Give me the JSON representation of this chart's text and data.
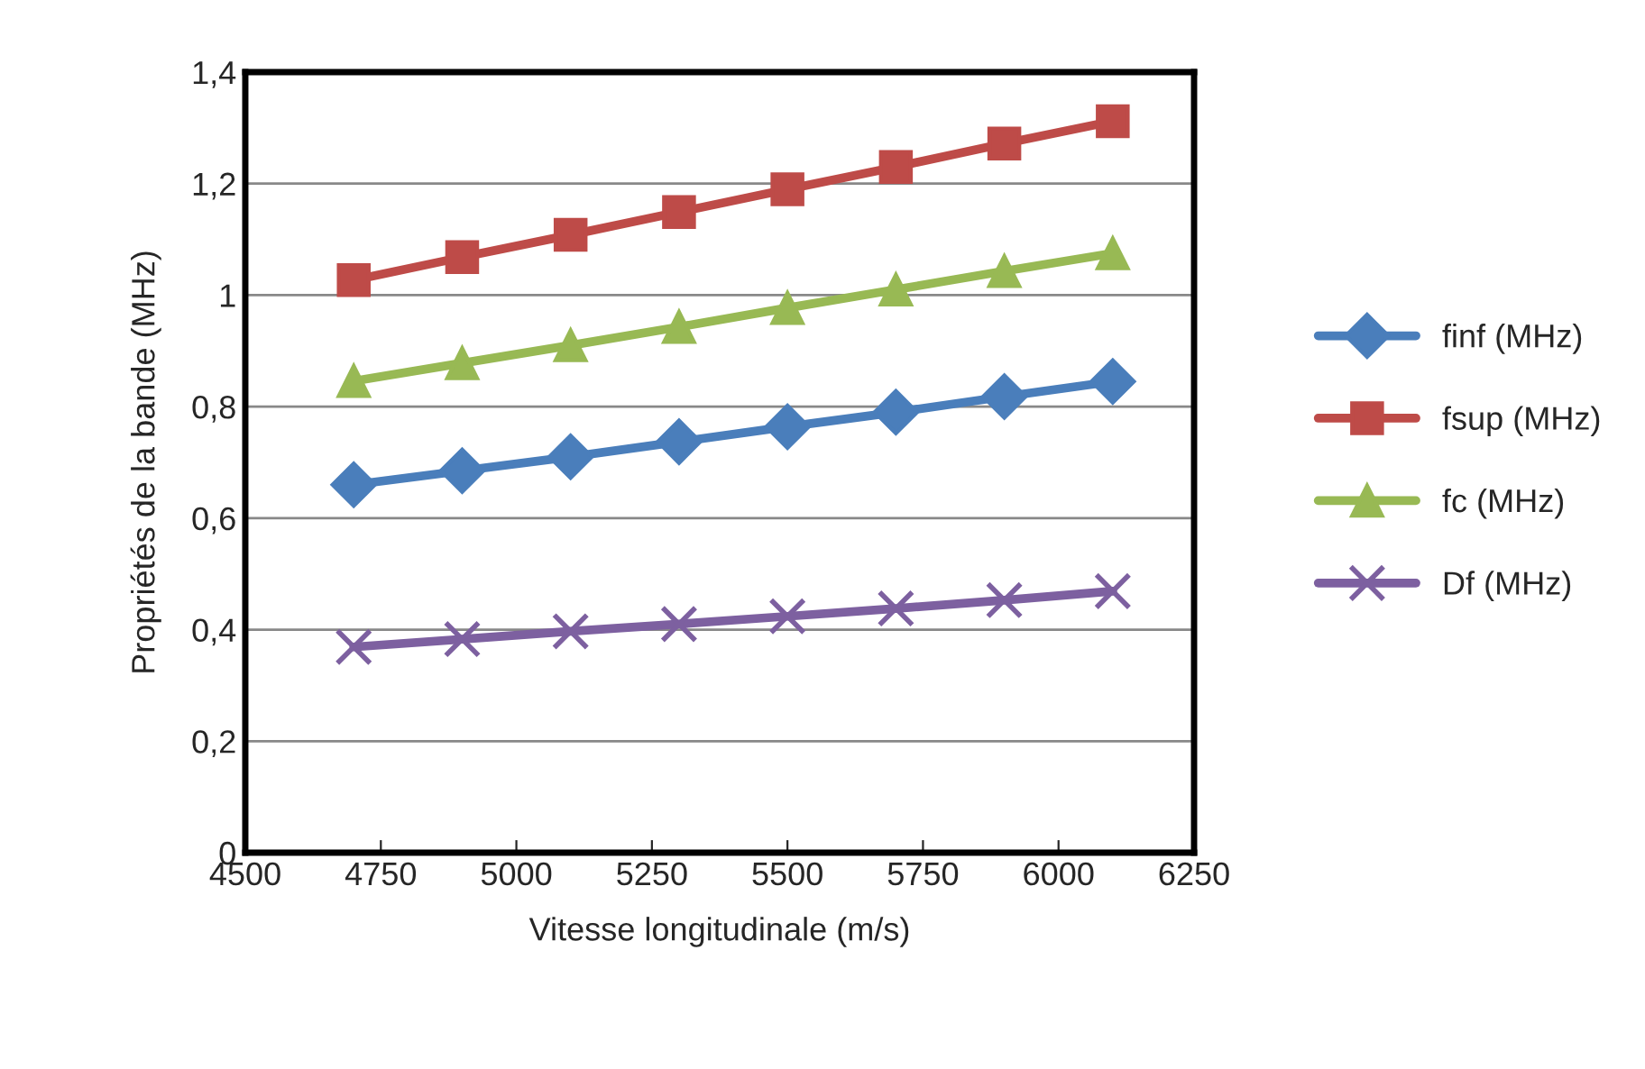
{
  "chart_data": {
    "type": "line",
    "xlabel": "Vitesse longitudinale (m/s)",
    "ylabel": "Propriétés de la bande (MHz)",
    "x": [
      4700,
      4900,
      5100,
      5300,
      5500,
      5700,
      5900,
      6100
    ],
    "series": [
      {
        "name": "finf (MHz)",
        "color": "#4a7ebb",
        "marker": "diamond",
        "values": [
          0.66,
          0.685,
          0.71,
          0.737,
          0.764,
          0.79,
          0.818,
          0.845
        ]
      },
      {
        "name": "fsup (MHz)",
        "color": "#be4b48",
        "marker": "square",
        "values": [
          1.027,
          1.068,
          1.108,
          1.149,
          1.19,
          1.23,
          1.272,
          1.312
        ]
      },
      {
        "name": "fc (MHz)",
        "color": "#98b954",
        "marker": "triangle",
        "values": [
          0.846,
          0.878,
          0.91,
          0.943,
          0.977,
          1.01,
          1.043,
          1.075
        ]
      },
      {
        "name": "Df (MHz)",
        "color": "#7d60a0",
        "marker": "cross",
        "values": [
          0.369,
          0.383,
          0.397,
          0.41,
          0.424,
          0.438,
          0.453,
          0.469
        ]
      }
    ],
    "xlim": [
      4500,
      6250
    ],
    "xticks": [
      4500,
      4750,
      5000,
      5250,
      5500,
      5750,
      6000,
      6250
    ],
    "ylim": [
      0,
      1.4
    ],
    "yticks": [
      {
        "value": 0,
        "label": "0"
      },
      {
        "value": 0.2,
        "label": "0,2"
      },
      {
        "value": 0.4,
        "label": "0,4"
      },
      {
        "value": 0.6,
        "label": "0,6"
      },
      {
        "value": 0.8,
        "label": "0,8"
      },
      {
        "value": 1,
        "label": "1"
      },
      {
        "value": 1.2,
        "label": "1,2"
      },
      {
        "value": 1.4,
        "label": "1,4"
      }
    ],
    "grid": "y",
    "legend": "right"
  }
}
